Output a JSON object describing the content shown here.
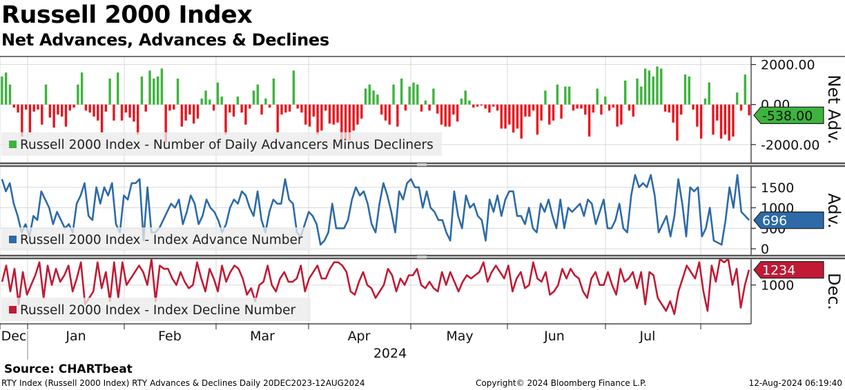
{
  "header": {
    "title": "Russell 2000 Index",
    "subtitle": "Net Advances, Advances & Declines"
  },
  "footer": {
    "source": "Source: CHARTbeat",
    "description": "RTY Index (Russell 2000 Index) RTY Advances & Declines  Daily 20DEC2023-12AUG2024",
    "copyright": "Copyright© 2024 Bloomberg Finance L.P.",
    "timestamp": "12-Aug-2024 06:19:40"
  },
  "colors": {
    "positive": "#3db43d",
    "negative": "#e8141e",
    "advance": "#2c6aa8",
    "decline": "#c01a34",
    "grid": "#d9d9d9",
    "separator": "#555555",
    "legend_bg": "#ebebeb"
  },
  "chart_data": [
    {
      "type": "bar",
      "panel": "net_advances",
      "axis_title": "Net Adv.",
      "legend": "Russell 2000 Index - Number of Daily Advancers Minus Decliners",
      "ylim": [
        -2900,
        2400
      ],
      "yticks": [
        2000,
        0,
        -2000
      ],
      "ytick_labels": [
        "2000.00",
        "0.00",
        "-2000.00"
      ],
      "last_value_label": "-538.00",
      "values": [
        1400,
        1600,
        1000,
        -150,
        -400,
        -1600,
        -250,
        -1400,
        -350,
        -250,
        -1000,
        1000,
        -650,
        -1150,
        -500,
        -600,
        -1100,
        -300,
        -150,
        1000,
        1600,
        -300,
        -400,
        -600,
        -800,
        -1400,
        -350,
        1300,
        -800,
        1600,
        -800,
        -400,
        -650,
        -850,
        -1500,
        1400,
        -350,
        1700,
        1300,
        1400,
        1800,
        -1900,
        -300,
        -250,
        1300,
        -1100,
        -800,
        -500,
        -950,
        -700,
        300,
        700,
        250,
        -300,
        1100,
        400,
        -1500,
        -400,
        -600,
        400,
        -400,
        -1000,
        -200,
        700,
        1000,
        -500,
        300,
        -150,
        1300,
        -1400,
        -500,
        -400,
        -350,
        1700,
        -200,
        -400,
        -1000,
        -1100,
        -600,
        -1500,
        -1300,
        -300,
        -950,
        -1000,
        -900,
        -1800,
        -1800,
        -1800,
        -1300,
        -1000,
        -700,
        800,
        1000,
        700,
        500,
        -500,
        -800,
        -1000,
        1000,
        -1100,
        1300,
        -300,
        900,
        1100,
        1000,
        -350,
        200,
        -300,
        800,
        -450,
        -1000,
        -1100,
        -1100,
        -500,
        -850,
        300,
        700,
        200,
        -150,
        -100,
        -50,
        -200,
        -400,
        -100,
        -300,
        -1200,
        -1200,
        -1000,
        -1400,
        -1200,
        -1700,
        -600,
        -600,
        -300,
        -1500,
        -800,
        700,
        -1000,
        -800,
        1000,
        -700,
        900,
        900,
        -300,
        -200,
        -200,
        -500,
        -1600,
        -400,
        800,
        -500,
        400,
        -300,
        -150,
        -1100,
        -1000,
        1200,
        -300,
        -600,
        1300,
        900,
        1800,
        1700,
        1400,
        1900,
        1800,
        -350,
        -400,
        -900,
        -1800,
        -500,
        1500,
        1400,
        -250,
        -1100,
        -1700,
        300,
        1100,
        -1500,
        -800,
        -1700,
        -1500,
        -1800,
        -1600,
        600,
        -300,
        1500,
        -538
      ]
    },
    {
      "type": "line",
      "panel": "advances",
      "axis_title": "Adv.",
      "legend": "Russell 2000 Index - Index Advance Number",
      "ylim": [
        -150,
        2000
      ],
      "yticks": [
        1500,
        1000,
        500,
        0
      ],
      "ytick_labels": [
        "1500",
        "1000",
        "500",
        "0"
      ],
      "last_value_label": "696",
      "values": [
        1700,
        1400,
        1600,
        1100,
        800,
        400,
        600,
        300,
        800,
        700,
        1400,
        1200,
        1000,
        600,
        900,
        700,
        500,
        600,
        400,
        1100,
        1300,
        1600,
        800,
        700,
        1500,
        1100,
        1500,
        1300,
        1600,
        600,
        400,
        1300,
        1200,
        1600,
        1600,
        1700,
        200,
        1500,
        400,
        400,
        500,
        700,
        900,
        1100,
        1000,
        1200,
        600,
        900,
        1300,
        1100,
        600,
        800,
        1200,
        1000,
        900,
        700,
        400,
        600,
        1000,
        1200,
        1100,
        1400,
        1300,
        1000,
        800,
        1400,
        700,
        400,
        900,
        1200,
        1100,
        1100,
        1700,
        1200,
        1100,
        400,
        300,
        600,
        900,
        800,
        600,
        100,
        200,
        400,
        1100,
        500,
        500,
        500,
        700,
        1200,
        1500,
        1300,
        1400,
        1100,
        600,
        400,
        1100,
        1600,
        1300,
        900,
        400,
        1400,
        1200,
        1600,
        1700,
        1500,
        1500,
        1000,
        1400,
        1000,
        900,
        700,
        700,
        400,
        200,
        1400,
        800,
        500,
        1300,
        1000,
        1100,
        800,
        700,
        200,
        1200,
        900,
        1300,
        800,
        1200,
        1400,
        1400,
        800,
        800,
        600,
        1000,
        500,
        400,
        1100,
        900,
        1200,
        800,
        500,
        1200,
        500,
        1000,
        900,
        1000,
        1100,
        800,
        1200,
        1100,
        600,
        900,
        1200,
        500,
        500,
        700,
        1100,
        500,
        400,
        1300,
        1800,
        1500,
        1600,
        1500,
        1800,
        1300,
        400,
        600,
        800,
        300,
        800,
        1700,
        1100,
        300,
        1500,
        1400,
        1500,
        300,
        500,
        1000,
        200,
        150,
        100,
        700,
        1500,
        1000,
        1800,
        900,
        800,
        696
      ]
    },
    {
      "type": "line",
      "panel": "declines",
      "axis_title": "Dec.",
      "legend": "Russell 2000 Index - Index Decline Number",
      "ylim": [
        400,
        1400
      ],
      "yticks": [
        1000
      ],
      "ytick_labels": [
        "1000"
      ],
      "last_value_label": "1234",
      "values": [
        1050,
        1300,
        900,
        1250,
        700,
        1200,
        850,
        1000,
        1150,
        1350,
        800,
        1300,
        1000,
        1250,
        1050,
        1150,
        1300,
        900,
        1100,
        1350,
        700,
        800,
        900,
        1350,
        950,
        1200,
        750,
        1350,
        800,
        1350,
        1000,
        1100,
        1200,
        1300,
        1200,
        1000,
        1400,
        750,
        1300,
        1250,
        1250,
        1100,
        1000,
        1200,
        1050,
        950,
        1000,
        1350,
        1100,
        900,
        1250,
        1100,
        900,
        1300,
        1050,
        1200,
        1300,
        1250,
        1100,
        850,
        950,
        750,
        1000,
        1050,
        1300,
        1000,
        900,
        1100,
        1200,
        1050,
        1050,
        1100,
        1300,
        900,
        1100,
        1200,
        1300,
        1100,
        1100,
        1250,
        1350,
        1350,
        1300,
        1200,
        900,
        850,
        1050,
        1200,
        1000,
        950,
        800,
        900,
        1000,
        1250,
        1150,
        900,
        1100,
        1000,
        1150,
        1150,
        1250,
        1000,
        950,
        1050,
        950,
        900,
        1200,
        1000,
        1200,
        1050,
        900,
        1050,
        1150,
        1100,
        1150,
        1200,
        1350,
        1050,
        1200,
        1300,
        1200,
        1100,
        1300,
        900,
        1100,
        1200,
        950,
        1000,
        1350,
        1100,
        1050,
        1200,
        850,
        900,
        1000,
        1250,
        1100,
        1250,
        1150,
        1100,
        900,
        800,
        1100,
        1200,
        1000,
        1000,
        1200,
        1000,
        850,
        1250,
        1050,
        1100,
        1200,
        950,
        1200,
        700,
        1200,
        1150,
        800,
        700,
        600,
        750,
        550,
        900,
        1100,
        1300,
        1200,
        1100,
        1350,
        900,
        600,
        1300,
        1050,
        1400,
        1350,
        1400,
        1000,
        1250,
        650,
        1000,
        1234
      ]
    }
  ],
  "x_axis": {
    "months": [
      "Dec",
      "Jan",
      "Feb",
      "Mar",
      "Apr",
      "May",
      "Jun",
      "Jul"
    ],
    "year": "2024"
  }
}
